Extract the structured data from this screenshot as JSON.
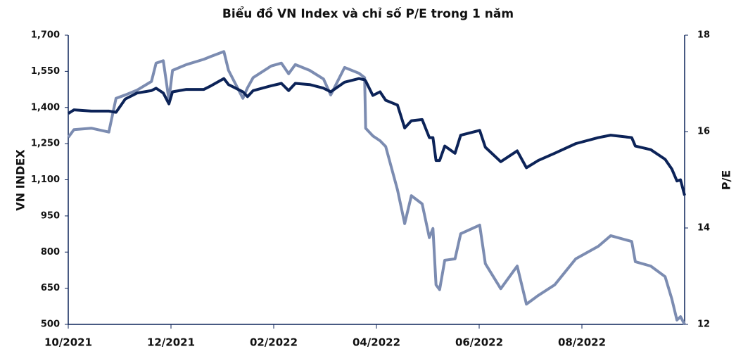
{
  "chart_data": {
    "type": "line",
    "title": "Biểu đồ VN Index và  chỉ số P/E trong 1 năm",
    "y_label": "VN INDEX",
    "y2_label": "P/E",
    "xlim": [
      0,
      12
    ],
    "xticks": [
      {
        "value": 0,
        "label": "10/2021"
      },
      {
        "value": 2,
        "label": "12/2021"
      },
      {
        "value": 4,
        "label": "02/2022"
      },
      {
        "value": 6,
        "label": "04/2022"
      },
      {
        "value": 8,
        "label": "06/2022"
      },
      {
        "value": 10,
        "label": "08/2022"
      }
    ],
    "ylim": [
      500,
      1700
    ],
    "yticks": [
      500,
      650,
      800,
      950,
      {
        "value": 1100,
        "label": "1,100"
      },
      {
        "value": 1250,
        "label": "1,250"
      },
      {
        "value": 1400,
        "label": "1,400"
      },
      {
        "value": 1550,
        "label": "1,550"
      },
      {
        "value": 1700,
        "label": "1,700"
      }
    ],
    "y2lim": [
      12,
      18
    ],
    "y2ticks": [
      12,
      14,
      16,
      18
    ],
    "x": [
      0,
      0.11,
      0.45,
      0.79,
      0.93,
      1.11,
      1.34,
      1.62,
      1.71,
      1.85,
      1.96,
      2.03,
      2.3,
      2.64,
      2.78,
      3.03,
      3.12,
      3.4,
      3.49,
      3.6,
      3.95,
      4.15,
      4.29,
      4.42,
      4.7,
      4.97,
      5.11,
      5.38,
      5.66,
      5.77,
      5.79,
      5.93,
      6.07,
      6.18,
      6.41,
      6.55,
      6.68,
      6.89,
      7.03,
      7.1,
      7.16,
      7.23,
      7.33,
      7.53,
      7.64,
      8.01,
      8.12,
      8.42,
      8.74,
      8.92,
      9.15,
      9.47,
      9.88,
      10.32,
      10.56,
      10.97,
      11.04,
      11.34,
      11.62,
      11.75,
      11.85,
      11.92,
      12.0
    ],
    "series": [
      {
        "color": "#0c2358",
        "values": [
          1375,
          1390,
          1385,
          1385,
          1380,
          1435,
          1460,
          1470,
          1480,
          1460,
          1415,
          1465,
          1475,
          1475,
          1490,
          1520,
          1495,
          1465,
          1445,
          1470,
          1490,
          1500,
          1470,
          1500,
          1495,
          1480,
          1465,
          1505,
          1520,
          1515,
          1510,
          1450,
          1465,
          1430,
          1410,
          1315,
          1345,
          1350,
          1275,
          1275,
          1180,
          1180,
          1240,
          1210,
          1285,
          1305,
          1235,
          1175,
          1220,
          1150,
          1180,
          1210,
          1250,
          1275,
          1285,
          1275,
          1240,
          1225,
          1185,
          1145,
          1095,
          1100,
          1035
        ]
      },
      {
        "color": "#7c8cb1",
        "axis": "y2",
        "values": [
          15.88,
          16.04,
          16.07,
          15.99,
          16.69,
          16.76,
          16.86,
          17.04,
          17.42,
          17.47,
          16.66,
          17.27,
          17.39,
          17.5,
          17.56,
          17.66,
          17.27,
          16.69,
          16.91,
          17.12,
          17.36,
          17.42,
          17.2,
          17.39,
          17.27,
          17.09,
          16.76,
          17.33,
          17.21,
          17.12,
          16.07,
          15.91,
          15.81,
          15.69,
          14.79,
          14.09,
          14.67,
          14.5,
          13.8,
          13.99,
          12.82,
          12.72,
          13.33,
          13.36,
          13.88,
          14.06,
          13.26,
          12.74,
          13.21,
          12.42,
          12.6,
          12.82,
          13.36,
          13.62,
          13.84,
          13.72,
          13.3,
          13.21,
          12.99,
          12.53,
          12.09,
          12.16,
          12.0
        ]
      }
    ]
  }
}
